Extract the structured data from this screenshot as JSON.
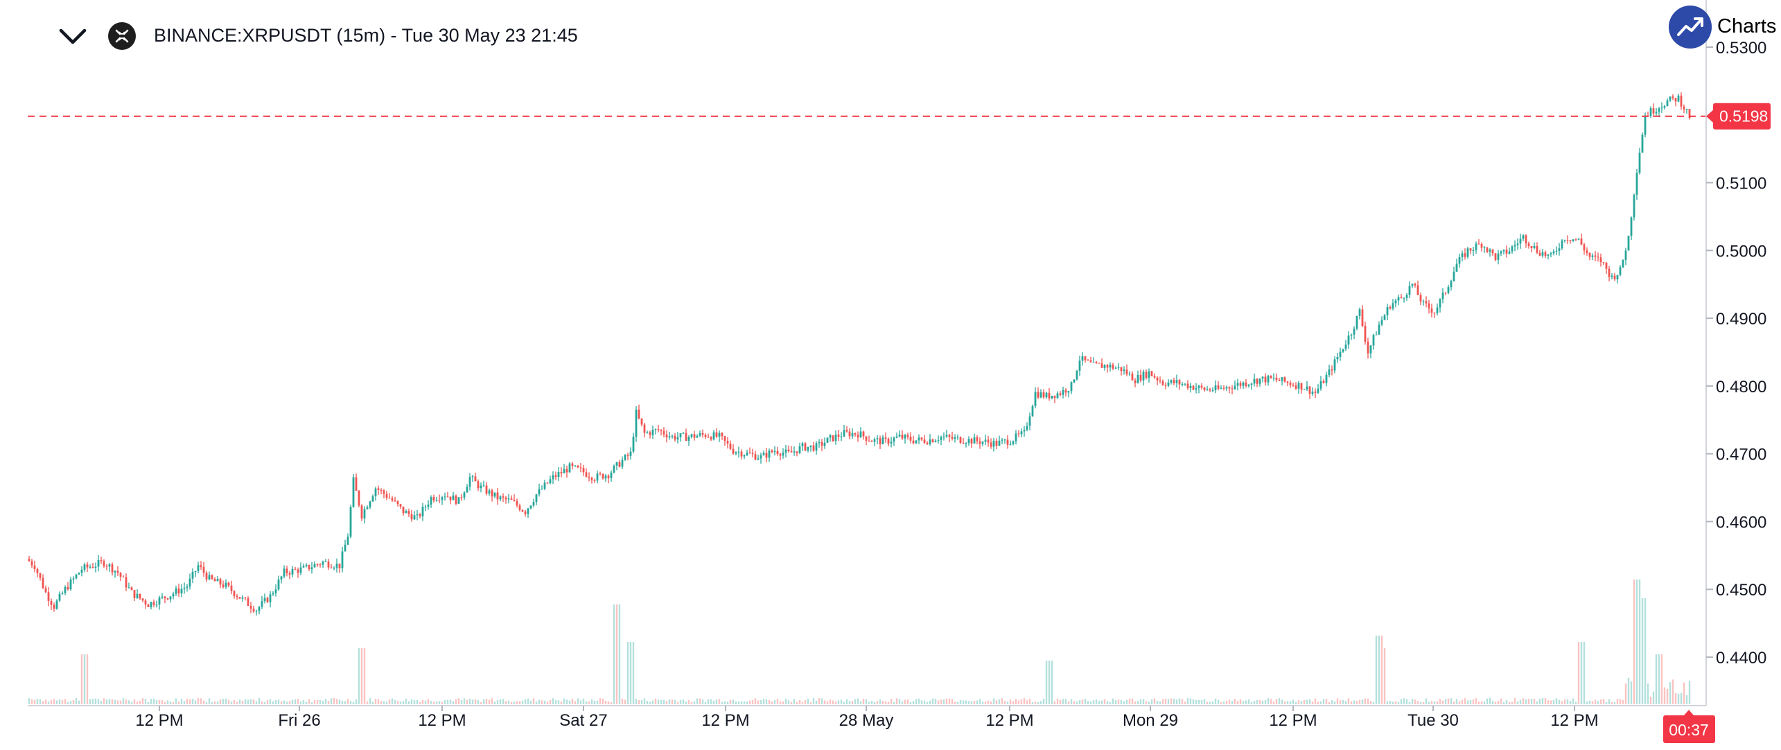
{
  "header": {
    "title": "BINANCE:XRPUSDT (15m) - Tue 30 May 23 21:45",
    "brand_label": "Charts p"
  },
  "price_badge": "0.5198",
  "countdown_badge": "00:37",
  "colors": {
    "up": "#26a69a",
    "down": "#ef5350",
    "grid": "#e0e3eb",
    "badge": "#f23645"
  },
  "chart_data": {
    "type": "candlestick",
    "title": "BINANCE:XRPUSDT (15m) - Tue 30 May 23 21:45",
    "ylim": [
      0.435,
      0.532
    ],
    "y_ticks": [
      {
        "value": 0.53,
        "label": "0.5300"
      },
      {
        "value": 0.51,
        "label": "0.5100"
      },
      {
        "value": 0.5,
        "label": "0.5000"
      },
      {
        "value": 0.49,
        "label": "0.4900"
      },
      {
        "value": 0.48,
        "label": "0.4800"
      },
      {
        "value": 0.47,
        "label": "0.4700"
      },
      {
        "value": 0.46,
        "label": "0.4600"
      },
      {
        "value": 0.45,
        "label": "0.4500"
      },
      {
        "value": 0.44,
        "label": "0.4400"
      }
    ],
    "x_ticks": [
      "12 PM",
      "Fri 26",
      "12 PM",
      "Sat 27",
      "12 PM",
      "28 May",
      "12 PM",
      "Mon 29",
      "12 PM",
      "Tue 30",
      "12 PM"
    ],
    "last_price": 0.5198,
    "price_path": [
      [
        0,
        0.4545
      ],
      [
        3,
        0.4535
      ],
      [
        7,
        0.4495
      ],
      [
        10,
        0.4475
      ],
      [
        14,
        0.45
      ],
      [
        20,
        0.453
      ],
      [
        28,
        0.454
      ],
      [
        33,
        0.4525
      ],
      [
        38,
        0.4495
      ],
      [
        44,
        0.4478
      ],
      [
        52,
        0.4492
      ],
      [
        58,
        0.4505
      ],
      [
        62,
        0.4535
      ],
      [
        66,
        0.4515
      ],
      [
        72,
        0.4505
      ],
      [
        78,
        0.4485
      ],
      [
        83,
        0.447
      ],
      [
        88,
        0.449
      ],
      [
        93,
        0.4525
      ],
      [
        100,
        0.453
      ],
      [
        107,
        0.454
      ],
      [
        113,
        0.4535
      ],
      [
        116,
        0.458
      ],
      [
        118,
        0.466
      ],
      [
        121,
        0.461
      ],
      [
        126,
        0.465
      ],
      [
        131,
        0.4635
      ],
      [
        136,
        0.4615
      ],
      [
        141,
        0.4605
      ],
      [
        146,
        0.4635
      ],
      [
        151,
        0.464
      ],
      [
        156,
        0.463
      ],
      [
        160,
        0.4665
      ],
      [
        164,
        0.465
      ],
      [
        170,
        0.4635
      ],
      [
        175,
        0.463
      ],
      [
        180,
        0.4615
      ],
      [
        184,
        0.464
      ],
      [
        190,
        0.4665
      ],
      [
        196,
        0.468
      ],
      [
        200,
        0.4675
      ],
      [
        205,
        0.4665
      ],
      [
        210,
        0.467
      ],
      [
        215,
        0.469
      ],
      [
        218,
        0.47
      ],
      [
        220,
        0.476
      ],
      [
        223,
        0.473
      ],
      [
        228,
        0.4735
      ],
      [
        233,
        0.4725
      ],
      [
        238,
        0.4725
      ],
      [
        245,
        0.4728
      ],
      [
        250,
        0.4725
      ],
      [
        255,
        0.4705
      ],
      [
        260,
        0.47
      ],
      [
        265,
        0.4695
      ],
      [
        270,
        0.4705
      ],
      [
        275,
        0.47
      ],
      [
        280,
        0.471
      ],
      [
        285,
        0.471
      ],
      [
        290,
        0.4722
      ],
      [
        295,
        0.473
      ],
      [
        300,
        0.473
      ],
      [
        305,
        0.472
      ],
      [
        310,
        0.4718
      ],
      [
        315,
        0.4725
      ],
      [
        320,
        0.472
      ],
      [
        325,
        0.472
      ],
      [
        330,
        0.4725
      ],
      [
        335,
        0.4722
      ],
      [
        340,
        0.472
      ],
      [
        345,
        0.4718
      ],
      [
        350,
        0.4715
      ],
      [
        355,
        0.472
      ],
      [
        360,
        0.473
      ],
      [
        364,
        0.479
      ],
      [
        368,
        0.4785
      ],
      [
        373,
        0.479
      ],
      [
        377,
        0.48
      ],
      [
        380,
        0.484
      ],
      [
        385,
        0.483
      ],
      [
        390,
        0.483
      ],
      [
        395,
        0.4825
      ],
      [
        400,
        0.481
      ],
      [
        405,
        0.482
      ],
      [
        410,
        0.4805
      ],
      [
        415,
        0.4805
      ],
      [
        420,
        0.48
      ],
      [
        425,
        0.4795
      ],
      [
        430,
        0.4795
      ],
      [
        435,
        0.48
      ],
      [
        440,
        0.4805
      ],
      [
        445,
        0.481
      ],
      [
        450,
        0.481
      ],
      [
        455,
        0.4805
      ],
      [
        460,
        0.48
      ],
      [
        465,
        0.479
      ],
      [
        470,
        0.482
      ],
      [
        474,
        0.485
      ],
      [
        478,
        0.488
      ],
      [
        481,
        0.491
      ],
      [
        484,
        0.485
      ],
      [
        488,
        0.489
      ],
      [
        492,
        0.492
      ],
      [
        496,
        0.493
      ],
      [
        500,
        0.495
      ],
      [
        504,
        0.492
      ],
      [
        508,
        0.491
      ],
      [
        512,
        0.494
      ],
      [
        516,
        0.498
      ],
      [
        520,
        0.5
      ],
      [
        525,
        0.501
      ],
      [
        530,
        0.499
      ],
      [
        535,
        0.5
      ],
      [
        540,
        0.502
      ],
      [
        545,
        0.5
      ],
      [
        550,
        0.499
      ],
      [
        555,
        0.502
      ],
      [
        560,
        0.5015
      ],
      [
        564,
        0.499
      ],
      [
        568,
        0.4985
      ],
      [
        572,
        0.496
      ],
      [
        575,
        0.497
      ],
      [
        578,
        0.502
      ],
      [
        581,
        0.512
      ],
      [
        584,
        0.52
      ],
      [
        588,
        0.521
      ],
      [
        592,
        0.522
      ],
      [
        596,
        0.5225
      ],
      [
        600,
        0.5198
      ]
    ],
    "volume_peaks": [
      [
        20,
        0.4
      ],
      [
        120,
        0.45
      ],
      [
        212,
        0.8
      ],
      [
        217,
        0.5
      ],
      [
        368,
        0.35
      ],
      [
        487,
        0.55
      ],
      [
        488,
        0.45
      ],
      [
        560,
        0.5
      ],
      [
        580,
        1.0
      ],
      [
        582,
        0.85
      ],
      [
        588,
        0.4
      ]
    ]
  }
}
